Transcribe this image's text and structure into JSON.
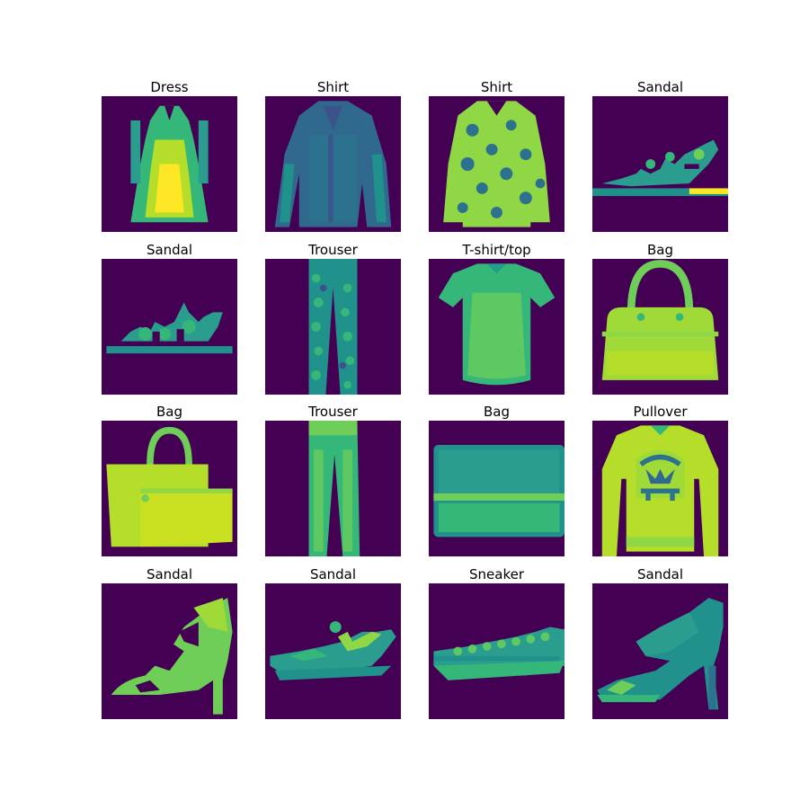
{
  "figure": {
    "background": "#ffffff",
    "colormap": "viridis",
    "image_background": "#440154",
    "grid": {
      "rows": 4,
      "cols": 4
    }
  },
  "samples": [
    {
      "label": "Dress",
      "icon": "dress-icon"
    },
    {
      "label": "Shirt",
      "icon": "shirt-icon"
    },
    {
      "label": "Shirt",
      "icon": "patterned-shirt-icon"
    },
    {
      "label": "Sandal",
      "icon": "flat-sandal-icon"
    },
    {
      "label": "Sandal",
      "icon": "low-sandal-icon"
    },
    {
      "label": "Trouser",
      "icon": "patterned-trouser-icon"
    },
    {
      "label": "T-shirt/top",
      "icon": "tshirt-icon"
    },
    {
      "label": "Bag",
      "icon": "handbag-icon"
    },
    {
      "label": "Bag",
      "icon": "double-bag-icon"
    },
    {
      "label": "Trouser",
      "icon": "trouser-icon"
    },
    {
      "label": "Bag",
      "icon": "clutch-bag-icon"
    },
    {
      "label": "Pullover",
      "icon": "pullover-icon"
    },
    {
      "label": "Sandal",
      "icon": "heeled-sandal-icon"
    },
    {
      "label": "Sandal",
      "icon": "slide-sandal-icon"
    },
    {
      "label": "Sneaker",
      "icon": "sneaker-icon"
    },
    {
      "label": "Sandal",
      "icon": "stiletto-sandal-icon"
    }
  ]
}
